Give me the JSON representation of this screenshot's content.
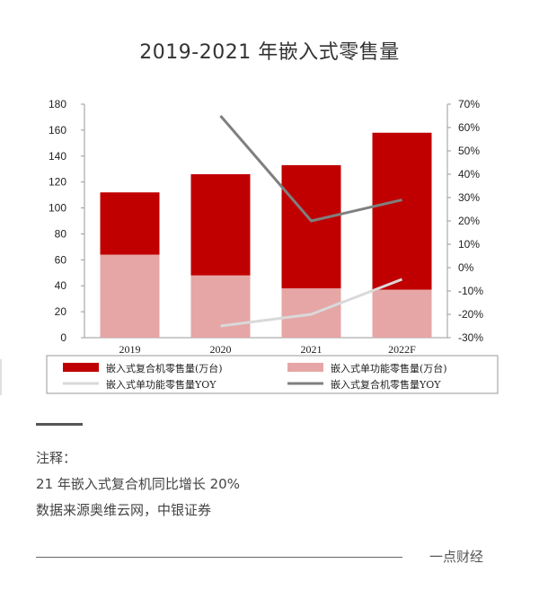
{
  "title": "2019-2021 年嵌入式零售量",
  "chart_data": {
    "type": "bar",
    "categories": [
      "2019",
      "2020",
      "2021",
      "2022F"
    ],
    "series": [
      {
        "name": "嵌入式复合机零售量(万台)",
        "kind": "bar-stack",
        "color": "#c00000",
        "values": [
          48,
          78,
          95,
          121
        ]
      },
      {
        "name": "嵌入式单功能零售量(万台)",
        "kind": "bar-stack",
        "color": "#e6a6a6",
        "values": [
          64,
          48,
          38,
          37
        ]
      },
      {
        "name": "嵌入式单功能零售量YOY",
        "kind": "line",
        "axis": "right",
        "color": "#d9d9d9",
        "values": [
          null,
          -25,
          -20,
          -5
        ]
      },
      {
        "name": "嵌入式复合机零售量YOY",
        "kind": "line",
        "axis": "right",
        "color": "#7f7f7f",
        "values": [
          null,
          65,
          20,
          29
        ]
      }
    ],
    "left_axis": {
      "ylim": [
        0,
        180
      ],
      "ticks": [
        "0",
        "20",
        "40",
        "60",
        "80",
        "100",
        "120",
        "140",
        "160",
        "180"
      ]
    },
    "right_axis": {
      "ylim": [
        -30,
        70
      ],
      "ticks": [
        "-30%",
        "-20%",
        "-10%",
        "0%",
        "10%",
        "20%",
        "30%",
        "40%",
        "50%",
        "60%",
        "70%"
      ]
    },
    "grid": false,
    "legend_placement": "bottom"
  },
  "notes": {
    "label": "注释：",
    "line1": "21 年嵌入式复合机同比增长 20%",
    "line2": "数据来源奥维云网，中银证券"
  },
  "brand": "一点财经"
}
